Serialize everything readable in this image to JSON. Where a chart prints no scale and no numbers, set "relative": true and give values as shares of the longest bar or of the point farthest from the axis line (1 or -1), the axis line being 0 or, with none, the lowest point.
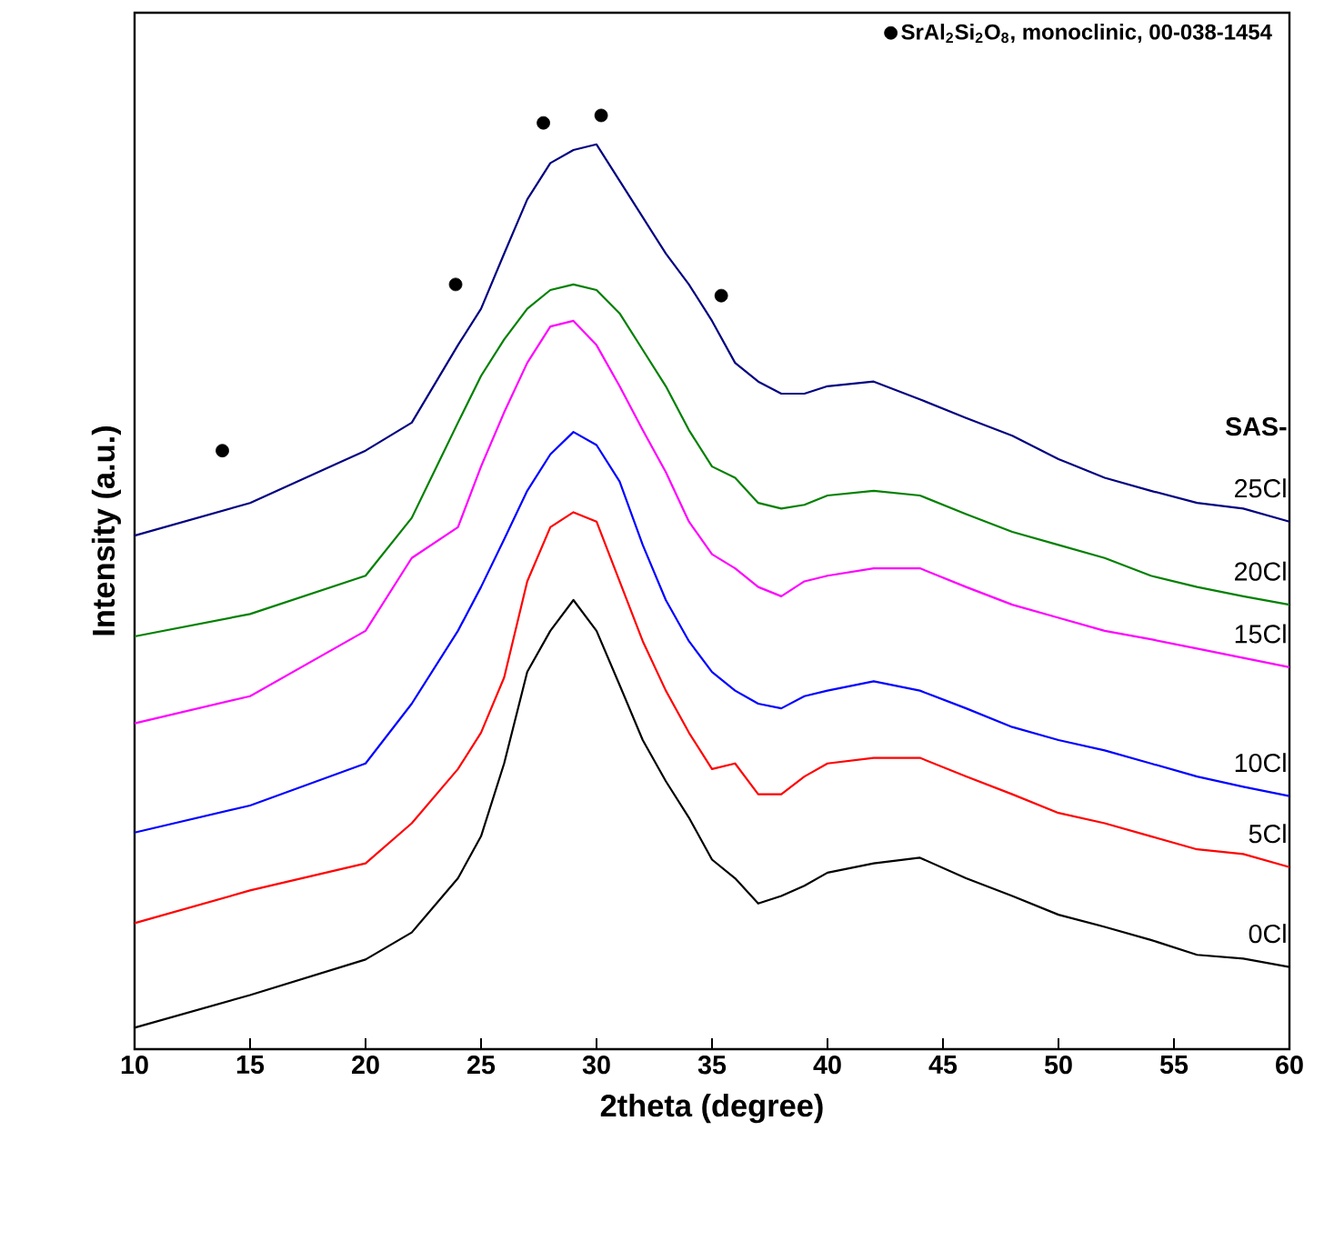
{
  "chart_data": {
    "type": "line",
    "relative": true,
    "xlabel": "2theta (degree)",
    "ylabel": "Intensity (a.u.)",
    "legend_title": "SAS-",
    "legend": "top",
    "xlim": [
      10,
      60
    ],
    "xticks": [
      10,
      15,
      20,
      25,
      30,
      35,
      40,
      45,
      50,
      55,
      60
    ],
    "x": [
      10,
      15,
      20,
      22,
      24,
      25,
      26,
      27,
      28,
      29,
      30,
      31,
      32,
      33,
      34,
      35,
      36,
      37,
      38,
      39,
      40,
      42,
      44,
      46,
      48,
      50,
      52,
      54,
      56,
      58,
      60
    ],
    "series": [
      {
        "name": "0Cl",
        "color": "#000000",
        "values": [
          0.023,
          0.058,
          0.096,
          0.125,
          0.183,
          0.228,
          0.306,
          0.404,
          0.448,
          0.481,
          0.448,
          0.39,
          0.331,
          0.287,
          0.248,
          0.203,
          0.183,
          0.156,
          0.164,
          0.175,
          0.189,
          0.199,
          0.205,
          0.183,
          0.164,
          0.144,
          0.131,
          0.117,
          0.101,
          0.097,
          0.088
        ]
      },
      {
        "name": "5Cl",
        "color": "#ff0000",
        "values": [
          0.135,
          0.17,
          0.199,
          0.242,
          0.3,
          0.339,
          0.398,
          0.501,
          0.559,
          0.575,
          0.565,
          0.501,
          0.437,
          0.384,
          0.339,
          0.3,
          0.306,
          0.273,
          0.273,
          0.292,
          0.306,
          0.312,
          0.312,
          0.292,
          0.273,
          0.253,
          0.242,
          0.228,
          0.214,
          0.209,
          0.195
        ]
      },
      {
        "name": "10Cl",
        "color": "#0000ff",
        "values": [
          0.232,
          0.261,
          0.306,
          0.37,
          0.448,
          0.495,
          0.546,
          0.598,
          0.637,
          0.661,
          0.647,
          0.608,
          0.54,
          0.481,
          0.437,
          0.404,
          0.384,
          0.37,
          0.365,
          0.378,
          0.384,
          0.394,
          0.384,
          0.365,
          0.345,
          0.331,
          0.32,
          0.306,
          0.292,
          0.281,
          0.271
        ]
      },
      {
        "name": "15Cl",
        "color": "#ff00ff",
        "values": [
          0.349,
          0.378,
          0.448,
          0.526,
          0.559,
          0.624,
          0.682,
          0.735,
          0.774,
          0.78,
          0.754,
          0.71,
          0.663,
          0.618,
          0.565,
          0.53,
          0.515,
          0.495,
          0.485,
          0.501,
          0.507,
          0.515,
          0.515,
          0.495,
          0.476,
          0.462,
          0.448,
          0.439,
          0.429,
          0.419,
          0.409
        ]
      },
      {
        "name": "20Cl",
        "color": "#008000",
        "values": [
          0.442,
          0.466,
          0.507,
          0.569,
          0.671,
          0.721,
          0.76,
          0.793,
          0.813,
          0.819,
          0.813,
          0.788,
          0.749,
          0.71,
          0.663,
          0.624,
          0.612,
          0.585,
          0.579,
          0.583,
          0.593,
          0.598,
          0.593,
          0.573,
          0.554,
          0.54,
          0.526,
          0.507,
          0.495,
          0.485,
          0.476
        ]
      },
      {
        "name": "25Cl",
        "color": "#000080",
        "values": [
          0.55,
          0.585,
          0.641,
          0.671,
          0.754,
          0.793,
          0.852,
          0.91,
          0.949,
          0.963,
          0.969,
          0.93,
          0.891,
          0.852,
          0.819,
          0.78,
          0.735,
          0.715,
          0.702,
          0.702,
          0.71,
          0.715,
          0.696,
          0.676,
          0.657,
          0.632,
          0.612,
          0.598,
          0.585,
          0.579,
          0.565
        ]
      },
      {
        "type": "scatter",
        "name": "SrAl$_{2}$Si$_{2}$O$_{8}$, monoclinic, 00-038-1454",
        "color": "#000000",
        "x": [
          13.8,
          23.9,
          27.7,
          30.2,
          35.4
        ],
        "values": [
          0.641,
          0.819,
          0.992,
          1.0,
          0.807
        ]
      }
    ]
  }
}
